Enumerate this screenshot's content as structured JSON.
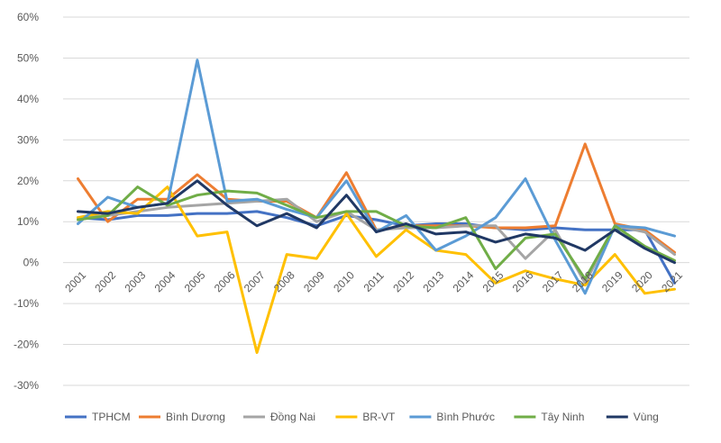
{
  "chart_data": {
    "type": "line",
    "title": "",
    "xlabel": "",
    "ylabel": "",
    "x": [
      "2001",
      "2002",
      "2003",
      "2004",
      "2005",
      "2006",
      "2007",
      "2008",
      "2009",
      "2010",
      "2011",
      "2012",
      "2013",
      "2014",
      "2015",
      "2016",
      "2017",
      "2018",
      "2019",
      "2020",
      "2021"
    ],
    "yticks": [
      "60%",
      "50%",
      "40%",
      "30%",
      "20%",
      "10%",
      "0%",
      "-10%",
      "-20%",
      "-30%"
    ],
    "ylim": [
      -30,
      60
    ],
    "grid": true,
    "legend": "bottom",
    "series": [
      {
        "name": "TPHCM",
        "color": "#4472C4",
        "values": [
          11,
          10.5,
          11.5,
          11.5,
          12,
          12,
          12.5,
          11,
          9,
          11.5,
          10.5,
          9,
          9.5,
          9.5,
          8.5,
          8,
          8.5,
          8,
          8,
          8,
          -5
        ]
      },
      {
        "name": "Bình Dương",
        "color": "#ED7D31",
        "values": [
          20.5,
          10,
          15.5,
          15.5,
          21.5,
          15.5,
          15,
          15,
          11,
          22,
          8,
          9,
          9,
          9,
          8.5,
          8.5,
          9,
          29,
          9.5,
          8,
          2.5
        ]
      },
      {
        "name": "Đồng Nai",
        "color": "#A5A5A5",
        "values": [
          11,
          11.5,
          12.5,
          13.5,
          14,
          14.5,
          15,
          15.5,
          10,
          12.5,
          8,
          8.5,
          8.5,
          9,
          9,
          1,
          8,
          -5,
          9,
          7.5,
          2
        ]
      },
      {
        "name": "BR-VT",
        "color": "#FFC000",
        "values": [
          11,
          12.5,
          12,
          18.5,
          6.5,
          7.5,
          -22,
          2,
          1,
          12,
          1.5,
          8,
          3,
          2,
          -5,
          -2,
          -4,
          -5.5,
          2,
          -7.5,
          -6.5
        ]
      },
      {
        "name": "Bình Phước",
        "color": "#5B9BD5",
        "values": [
          9.5,
          16,
          13.5,
          14.5,
          49.5,
          15,
          15.5,
          13,
          11,
          20,
          7.5,
          11.5,
          3,
          6.5,
          11,
          20.5,
          5.5,
          -7.5,
          9,
          8.5,
          6.5
        ]
      },
      {
        "name": "Tây Ninh",
        "color": "#70AD47",
        "values": [
          10.5,
          11.5,
          18.5,
          14,
          16.5,
          17.5,
          17,
          14,
          11,
          12.5,
          12.5,
          9,
          8.5,
          11,
          -1.5,
          6,
          7,
          -4,
          9,
          4,
          0.5
        ]
      },
      {
        "name": "Vùng",
        "color": "#203864",
        "values": [
          12.5,
          12,
          13.5,
          14.5,
          20,
          14,
          9,
          12,
          8.5,
          16.5,
          7.5,
          9.5,
          7,
          7.5,
          5,
          7,
          6,
          3,
          8,
          3.5,
          0
        ]
      }
    ]
  }
}
